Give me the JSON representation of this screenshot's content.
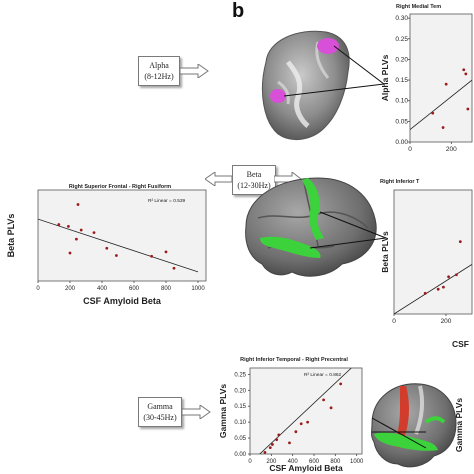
{
  "panel_label": "b",
  "bands": [
    {
      "name": "Alpha",
      "range": "(8-12Hz)"
    },
    {
      "name": "Beta",
      "range": "(12-30Hz)"
    },
    {
      "name": "Gamma",
      "range": "(30-45Hz)"
    }
  ],
  "colors": {
    "alpha_region": "#d84fd8",
    "beta_region": "#3cd23c",
    "gamma_region_green": "#3cd23c",
    "gamma_region_red": "#d23c2c",
    "point": "#9b1c1c",
    "fit_line": "#222222",
    "plot_bg": "#f2f2f2"
  },
  "chart_data": [
    {
      "id": "alpha-right",
      "type": "scatter",
      "title": "Right Medial Tem",
      "xlabel": "",
      "ylabel": "Alpha PLVs",
      "y_ticks": [
        "0.00",
        "0.05",
        "0.10",
        "0.15",
        "0.20",
        "0.25",
        "0.30"
      ],
      "ylim": [
        0,
        0.31
      ],
      "x_ticks": [
        "0",
        "200"
      ],
      "xlim": [
        0,
        300
      ],
      "points": [
        [
          110,
          0.07
        ],
        [
          160,
          0.035
        ],
        [
          175,
          0.14
        ],
        [
          260,
          0.175
        ],
        [
          270,
          0.165
        ],
        [
          280,
          0.08
        ]
      ],
      "fit": [
        [
          0,
          0.03
        ],
        [
          300,
          0.15
        ]
      ]
    },
    {
      "id": "beta-left",
      "type": "scatter",
      "title": "Right Superior Frontal - Right Fusiform",
      "annotation": "R² Linear = 0.539",
      "xlabel": "CSF Amyloid Beta",
      "ylabel": "Beta PLVs",
      "y_ticks": [],
      "ylim": [
        0,
        0.25
      ],
      "x_ticks": [
        "0",
        "200",
        "400",
        "600",
        "800",
        "1000"
      ],
      "xlim": [
        0,
        1050
      ],
      "points": [
        [
          130,
          0.155
        ],
        [
          190,
          0.15
        ],
        [
          200,
          0.077
        ],
        [
          250,
          0.21
        ],
        [
          240,
          0.115
        ],
        [
          270,
          0.14
        ],
        [
          350,
          0.133
        ],
        [
          430,
          0.09
        ],
        [
          490,
          0.07
        ],
        [
          710,
          0.068
        ],
        [
          800,
          0.08
        ],
        [
          850,
          0.035
        ]
      ],
      "fit": [
        [
          0,
          0.17
        ],
        [
          1000,
          0.025
        ]
      ]
    },
    {
      "id": "beta-right",
      "type": "scatter",
      "title": "Right Inferior T",
      "xlabel": "CSF",
      "ylabel": "Beta PLVs",
      "y_ticks": [],
      "ylim": [
        0,
        0.3
      ],
      "x_ticks": [
        "0",
        "200"
      ],
      "xlim": [
        0,
        300
      ],
      "points": [
        [
          120,
          0.05
        ],
        [
          170,
          0.06
        ],
        [
          190,
          0.065
        ],
        [
          210,
          0.09
        ],
        [
          240,
          0.095
        ],
        [
          255,
          0.175
        ]
      ],
      "fit": [
        [
          0,
          0.0
        ],
        [
          300,
          0.12
        ]
      ]
    },
    {
      "id": "gamma-mid",
      "type": "scatter",
      "title": "Right Inferior Temporal - Right Precentral",
      "annotation": "R² Linear = 0.862",
      "xlabel": "CSF Amyloid Beta",
      "ylabel": "Gamma PLVs",
      "y_ticks": [
        "0.00",
        "0.05",
        "0.10",
        "0.15",
        "0.20",
        "0.25"
      ],
      "ylim": [
        0,
        0.27
      ],
      "x_ticks": [
        "0",
        "200",
        "400",
        "600",
        "800",
        "1000"
      ],
      "xlim": [
        0,
        1050
      ],
      "points": [
        [
          140,
          0.005
        ],
        [
          190,
          0.02
        ],
        [
          210,
          0.03
        ],
        [
          250,
          0.045
        ],
        [
          270,
          0.06
        ],
        [
          370,
          0.035
        ],
        [
          430,
          0.07
        ],
        [
          480,
          0.095
        ],
        [
          540,
          0.1
        ],
        [
          690,
          0.17
        ],
        [
          760,
          0.145
        ],
        [
          850,
          0.22
        ]
      ],
      "fit": [
        [
          60,
          -0.01
        ],
        [
          950,
          0.27
        ]
      ]
    },
    {
      "id": "gamma-right",
      "type": "scatter",
      "title": "",
      "xlabel": "",
      "ylabel": "Gamma PLVs",
      "y_ticks": [],
      "ylim": [
        0,
        0.3
      ],
      "x_ticks": [],
      "xlim": [
        0,
        100
      ],
      "points": [],
      "fit": []
    }
  ]
}
